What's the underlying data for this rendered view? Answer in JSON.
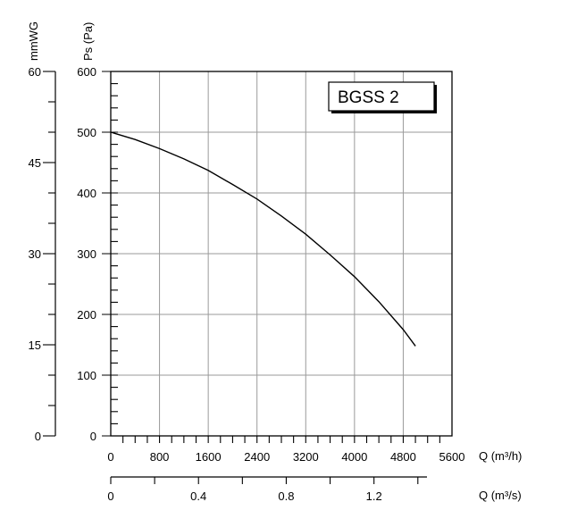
{
  "chart_data": {
    "type": "line",
    "legend_box": "BGSS 2",
    "legend_placement": "top-right",
    "grid": true,
    "series": [
      {
        "x": [
          0,
          400,
          800,
          1200,
          1600,
          2000,
          2400,
          2800,
          3200,
          3600,
          4000,
          4400,
          4800,
          5000
        ],
        "y": [
          500,
          488,
          473,
          456,
          437,
          414,
          390,
          362,
          332,
          298,
          262,
          221,
          175,
          148
        ]
      }
    ],
    "x_axis": {
      "label": "Q (m³/h)",
      "range": [
        0,
        5600
      ],
      "ticks": [
        0,
        800,
        1600,
        2400,
        3200,
        4000,
        4800,
        5600
      ],
      "tick_labels": [
        "0",
        "800",
        "1600",
        "2400",
        "3200",
        "4000",
        "4800",
        "5600"
      ]
    },
    "x2_axis": {
      "label": "Q (m³/s)",
      "range": [
        0,
        1.5556
      ],
      "ticks": [
        0,
        0.4,
        0.8,
        1.2
      ],
      "tick_labels": [
        "0",
        "0.4",
        "0.8",
        "1.2"
      ]
    },
    "y_axis": {
      "label": "Ps (Pa)",
      "range": [
        0,
        600
      ],
      "ticks": [
        0,
        100,
        200,
        300,
        400,
        500,
        600
      ],
      "tick_labels": [
        "0",
        "100",
        "200",
        "300",
        "400",
        "500",
        "600"
      ]
    },
    "y2_axis": {
      "label": "mmWG",
      "range": [
        0,
        60
      ],
      "ticks": [
        0,
        15,
        30,
        45,
        60
      ],
      "tick_labels": [
        "0",
        "15",
        "30",
        "45",
        "60"
      ]
    }
  }
}
